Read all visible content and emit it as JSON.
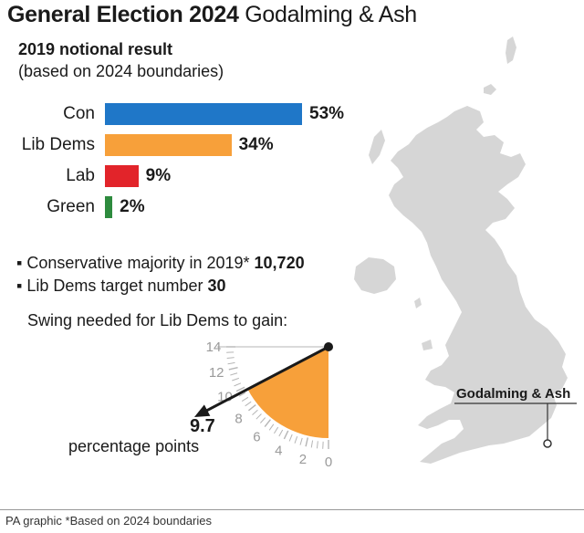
{
  "header": {
    "title_bold": "General Election 2024",
    "title_rest": "Godalming & Ash",
    "subtitle": "2019 notional result",
    "subnote": "(based on 2024 boundaries)"
  },
  "chart_data": {
    "type": "bar",
    "orientation": "horizontal",
    "title": "2019 notional result",
    "categories": [
      "Con",
      "Lib Dems",
      "Lab",
      "Green"
    ],
    "values": [
      53,
      34,
      9,
      2
    ],
    "value_labels": [
      "53%",
      "34%",
      "9%",
      "2%"
    ],
    "colors": [
      "#1f77c8",
      "#f7a03a",
      "#e2242a",
      "#2e8b3e"
    ],
    "xlim": [
      0,
      53
    ]
  },
  "facts": {
    "majority_text": "Conservative majority in 2019*",
    "majority_value": "10,720",
    "target_text": "Lib Dems target number",
    "target_value": "30"
  },
  "swing": {
    "title": "Swing needed for Lib Dems to gain:",
    "value": 9.7,
    "value_label": "9.7",
    "unit": "percentage points",
    "scale_max": 14,
    "ticks": [
      "0",
      "2",
      "4",
      "6",
      "8",
      "10",
      "12",
      "14"
    ],
    "fill_color": "#f7a03a"
  },
  "map": {
    "place": "Godalming & Ash"
  },
  "footer": {
    "note": "PA graphic *Based on 2024 boundaries"
  }
}
